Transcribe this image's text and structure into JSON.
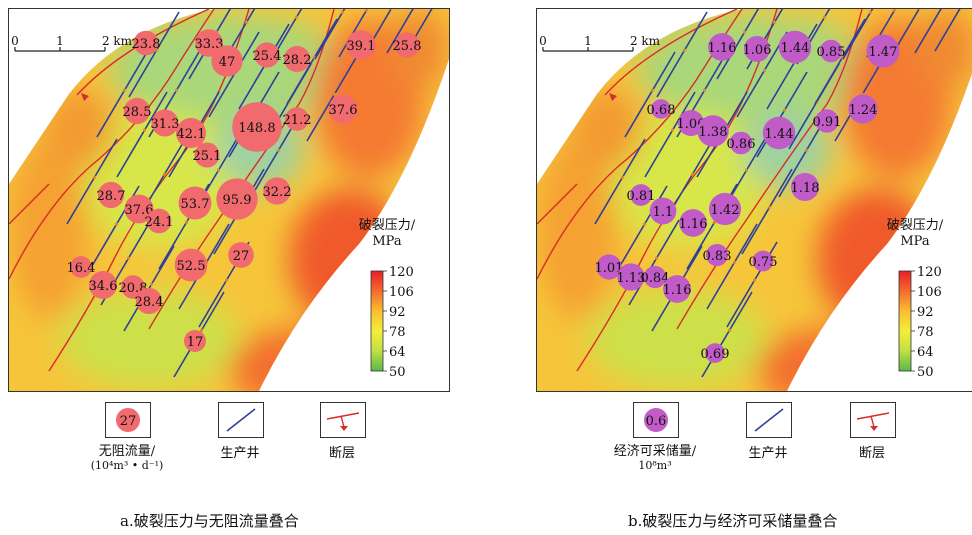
{
  "colorbar": {
    "title_line1": "破裂压力/",
    "title_line2": "MPa",
    "ticks": [
      120,
      106,
      92,
      78,
      64,
      50
    ],
    "colors": [
      "#e8202a",
      "#f46b2c",
      "#fbbd30",
      "#f3ee3a",
      "#c2df44",
      "#58b84a"
    ]
  },
  "scale_bar": {
    "labels": [
      "0",
      "1",
      "2 km"
    ]
  },
  "legend": {
    "wells_label": "生产井",
    "fault_label": "断层",
    "flow_sample_value": "27",
    "flow_label_line1": "无阻流量/",
    "flow_label_line2": "(10⁴m³ • d⁻¹)",
    "reserve_sample_value": "0.6",
    "reserve_label_line1": "经济可采储量/",
    "reserve_label_line2": "10⁸m³"
  },
  "captions": {
    "a": "a.破裂压力与无阻流量叠合",
    "b": "b.破裂压力与经济可采储量叠合"
  },
  "colors": {
    "flow_bubble": "#f06a6e",
    "reserve_bubble": "#c05bc8",
    "well": "#2d3f9a",
    "fault": "#d92b2b"
  },
  "chart_data": [
    {
      "type": "scatter",
      "panel": "a",
      "value_name": "无阻流量/(10⁴m³ • d⁻¹)",
      "colorbar_range": [
        50,
        120
      ],
      "values": [
        23.8,
        33.3,
        47,
        25.4,
        28.2,
        39.1,
        25.8,
        28.5,
        31.3,
        42.1,
        148.8,
        21.2,
        37.6,
        25.1,
        28.7,
        37.6,
        24.1,
        53.7,
        95.9,
        32.2,
        52.5,
        27,
        16.4,
        34.6,
        20.8,
        28.4,
        17
      ]
    },
    {
      "type": "scatter",
      "panel": "b",
      "value_name": "经济可采储量/10⁸m³",
      "colorbar_range": [
        50,
        120
      ],
      "values": [
        1.16,
        1.06,
        1.44,
        0.85,
        1.47,
        0.68,
        1.06,
        1.38,
        0.86,
        1.44,
        0.91,
        1.24,
        0.81,
        1.1,
        1.16,
        1.42,
        1.18,
        0.83,
        0.75,
        1.01,
        1.13,
        0.84,
        1.16,
        0.69
      ]
    }
  ]
}
